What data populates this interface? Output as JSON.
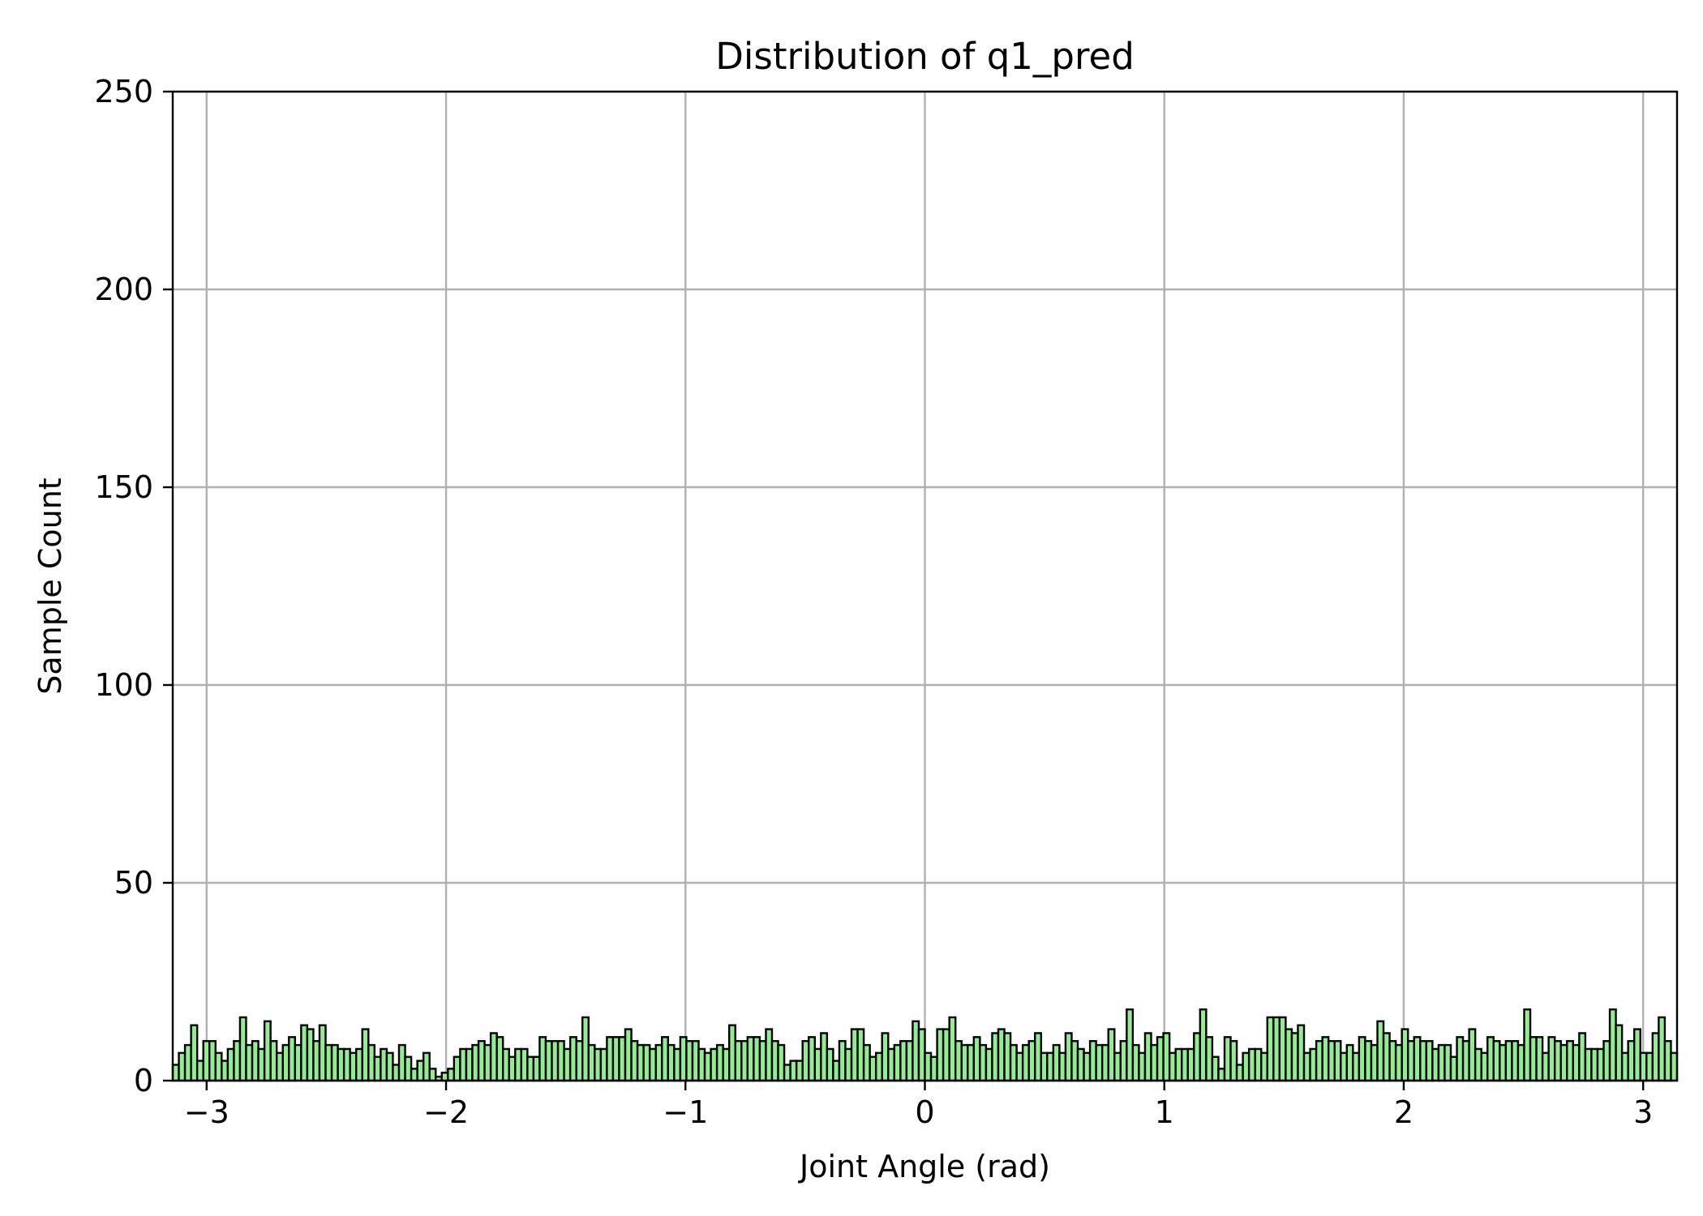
{
  "chart_data": {
    "type": "bar",
    "title": "Distribution of q1_pred",
    "xlabel": "Joint Angle (rad)",
    "ylabel": "Sample Count",
    "xlim": [
      -3.1416,
      3.1416
    ],
    "ylim": [
      0,
      250
    ],
    "xticks": [
      -3,
      -2,
      -1,
      0,
      1,
      2,
      3
    ],
    "xtick_labels": [
      "−3",
      "−2",
      "−1",
      "0",
      "1",
      "2",
      "3"
    ],
    "yticks": [
      0,
      50,
      100,
      150,
      200,
      250
    ],
    "ytick_labels": [
      "0",
      "50",
      "100",
      "150",
      "200",
      "250"
    ],
    "grid": true,
    "legend": false,
    "bin_range": [
      -3.1416,
      3.1416
    ],
    "bar_color": "#90ee90",
    "edge_color": "#000000",
    "grid_color": "#b0b0b0",
    "values": [
      4,
      7,
      9,
      14,
      5,
      10,
      10,
      7,
      5,
      8,
      10,
      16,
      9,
      10,
      8,
      15,
      10,
      7,
      9,
      11,
      9,
      14,
      13,
      10,
      14,
      9,
      9,
      8,
      8,
      7,
      8,
      13,
      9,
      6,
      8,
      7,
      4,
      9,
      6,
      3,
      5,
      7,
      3,
      1,
      2,
      3,
      6,
      8,
      8,
      9,
      10,
      9,
      12,
      11,
      8,
      6,
      8,
      8,
      6,
      6,
      11,
      10,
      10,
      10,
      8,
      11,
      10,
      16,
      9,
      8,
      8,
      11,
      11,
      11,
      13,
      10,
      9,
      9,
      8,
      9,
      11,
      9,
      8,
      11,
      10,
      10,
      8,
      7,
      8,
      9,
      8,
      14,
      10,
      10,
      11,
      11,
      10,
      13,
      10,
      9,
      4,
      5,
      5,
      10,
      11,
      8,
      12,
      8,
      5,
      10,
      8,
      13,
      13,
      9,
      6,
      7,
      12,
      8,
      9,
      10,
      10,
      15,
      13,
      7,
      6,
      13,
      13,
      16,
      10,
      9,
      9,
      11,
      9,
      8,
      12,
      13,
      12,
      9,
      7,
      9,
      10,
      12,
      7,
      7,
      9,
      7,
      12,
      10,
      8,
      7,
      10,
      9,
      9,
      13,
      7,
      10,
      18,
      9,
      7,
      12,
      9,
      11,
      12,
      7,
      8,
      8,
      8,
      12,
      18,
      11,
      6,
      3,
      11,
      10,
      4,
      7,
      8,
      8,
      7,
      16,
      16,
      16,
      13,
      12,
      14,
      7,
      8,
      10,
      11,
      10,
      10,
      7,
      9,
      7,
      11,
      10,
      9,
      15,
      12,
      10,
      9,
      13,
      10,
      11,
      10,
      10,
      8,
      9,
      9,
      6,
      11,
      10,
      13,
      8,
      7,
      11,
      10,
      9,
      10,
      10,
      9,
      18,
      11,
      11,
      7,
      11,
      10,
      9,
      10,
      9,
      12,
      8,
      8,
      8,
      10,
      18,
      14,
      7,
      10,
      13,
      7,
      7,
      12,
      16,
      10,
      7
    ]
  }
}
